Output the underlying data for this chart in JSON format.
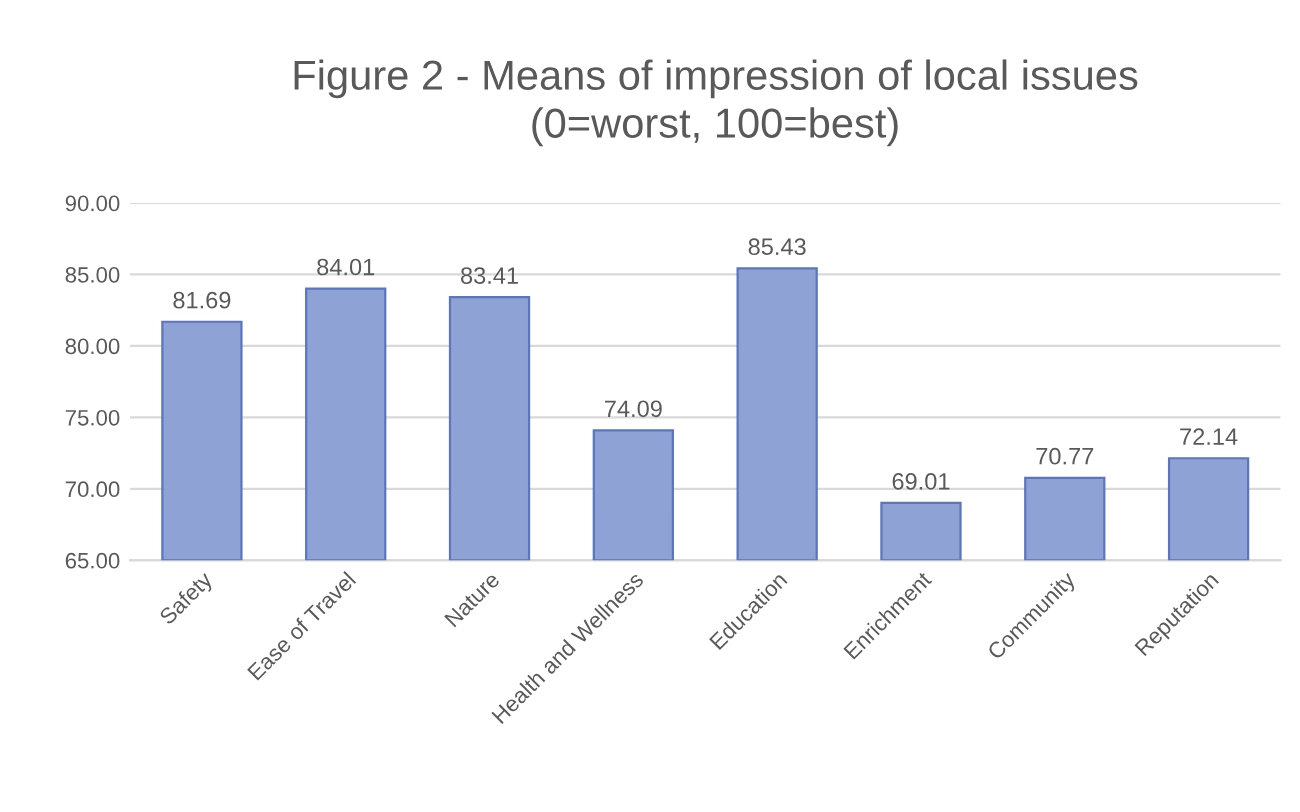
{
  "chart_data": {
    "type": "bar",
    "title": "Figure 2 - Means of impression of local issues\n(0=worst, 100=best)",
    "categories": [
      "Safety",
      "Ease of Travel",
      "Nature",
      "Health and Wellness",
      "Education",
      "Enrichment",
      "Community",
      "Reputation"
    ],
    "values": [
      81.69,
      84.01,
      83.41,
      74.09,
      85.43,
      69.01,
      70.77,
      72.14
    ],
    "color": "#8ea2d6",
    "ylim": [
      65,
      90
    ],
    "yticks": [
      {
        "value": 65,
        "label": "65.00"
      },
      {
        "value": 70,
        "label": "70.00"
      },
      {
        "value": 75,
        "label": "75.00"
      },
      {
        "value": 80,
        "label": "80.00"
      },
      {
        "value": 85,
        "label": "85.00"
      },
      {
        "value": 90,
        "label": "90.00"
      }
    ],
    "grid": "y",
    "data_labels": true,
    "legend": false
  }
}
